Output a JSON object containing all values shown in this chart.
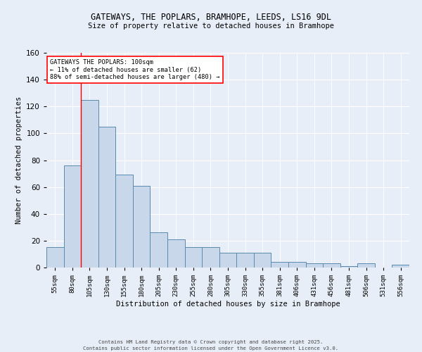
{
  "title": "GATEWAYS, THE POPLARS, BRAMHOPE, LEEDS, LS16 9DL",
  "subtitle": "Size of property relative to detached houses in Bramhope",
  "xlabel": "Distribution of detached houses by size in Bramhope",
  "ylabel": "Number of detached properties",
  "categories": [
    "55sqm",
    "80sqm",
    "105sqm",
    "130sqm",
    "155sqm",
    "180sqm",
    "205sqm",
    "230sqm",
    "255sqm",
    "280sqm",
    "305sqm",
    "330sqm",
    "355sqm",
    "381sqm",
    "406sqm",
    "431sqm",
    "456sqm",
    "481sqm",
    "506sqm",
    "531sqm",
    "556sqm"
  ],
  "values": [
    15,
    76,
    125,
    105,
    69,
    61,
    26,
    21,
    15,
    15,
    11,
    11,
    11,
    4,
    4,
    3,
    3,
    1,
    3,
    0,
    2
  ],
  "bar_color": "#c8d8ea",
  "bar_edge_color": "#5a8ab0",
  "red_line_x": 1.5,
  "annotation_title": "GATEWAYS THE POPLARS: 100sqm",
  "annotation_line1": "← 11% of detached houses are smaller (62)",
  "annotation_line2": "88% of semi-detached houses are larger (480) →",
  "ylim": [
    0,
    160
  ],
  "yticks": [
    0,
    20,
    40,
    60,
    80,
    100,
    120,
    140,
    160
  ],
  "footer1": "Contains HM Land Registry data © Crown copyright and database right 2025.",
  "footer2": "Contains public sector information licensed under the Open Government Licence v3.0.",
  "bg_color": "#e8eef8",
  "plot_bg_color": "#e8eef8"
}
